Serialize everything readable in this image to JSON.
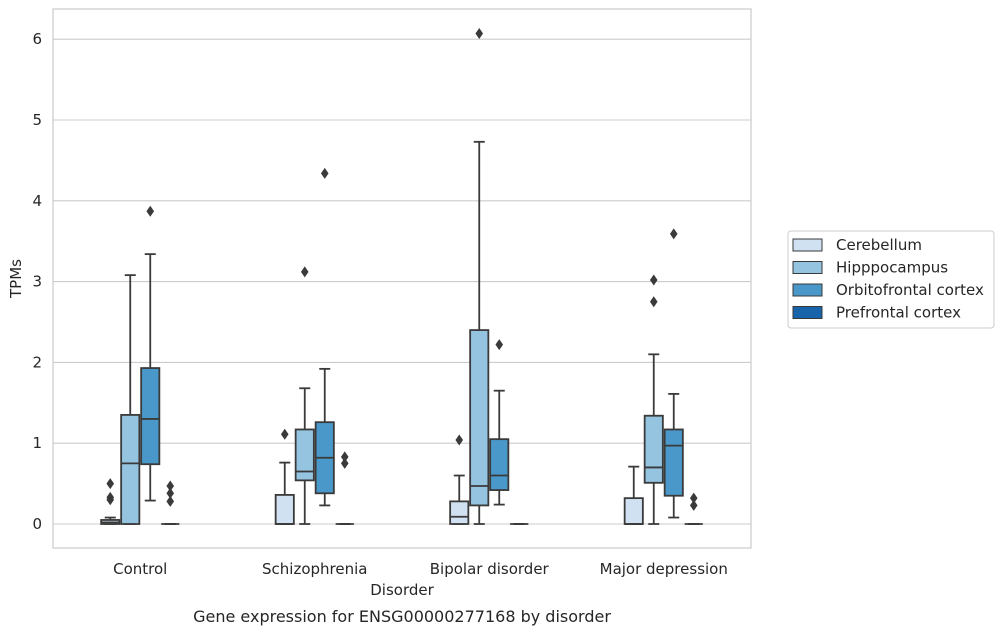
{
  "chart_data": {
    "type": "box",
    "title": "",
    "caption": "Gene expression for ENSG00000277168 by disorder",
    "xlabel": "Disorder",
    "ylabel": "TPMs",
    "ylim": [
      -0.3,
      6.4
    ],
    "yticks": [
      0,
      1,
      2,
      3,
      4,
      5,
      6
    ],
    "grid": "horizontal",
    "legend_position": "right",
    "categories": [
      "Control",
      "Schizophrenia",
      "Bipolar disorder",
      "Major depression"
    ],
    "series": [
      {
        "name": "Cerebellum",
        "color": "#d0e1f2",
        "boxes": [
          {
            "whislo": 0,
            "q1": 0,
            "med": 0.02,
            "q3": 0.05,
            "whishi": 0.08,
            "fliers": [
              0.3,
              0.33,
              0.5
            ]
          },
          {
            "whislo": 0,
            "q1": 0,
            "med": 0,
            "q3": 0.36,
            "whishi": 0.76,
            "fliers": [
              1.11
            ]
          },
          {
            "whislo": 0,
            "q1": 0,
            "med": 0.09,
            "q3": 0.28,
            "whishi": 0.6,
            "fliers": [
              1.04
            ]
          },
          {
            "whislo": 0,
            "q1": 0,
            "med": 0,
            "q3": 0.32,
            "whishi": 0.71,
            "fliers": []
          }
        ]
      },
      {
        "name": "Hipppocampus",
        "color": "#94c4df",
        "boxes": [
          {
            "whislo": 0,
            "q1": 0,
            "med": 0.75,
            "q3": 1.35,
            "whishi": 3.08,
            "fliers": []
          },
          {
            "whislo": 0,
            "q1": 0.54,
            "med": 0.65,
            "q3": 1.17,
            "whishi": 1.68,
            "fliers": [
              3.12
            ]
          },
          {
            "whislo": 0,
            "q1": 0.23,
            "med": 0.47,
            "q3": 2.4,
            "whishi": 4.73,
            "fliers": [
              6.07
            ]
          },
          {
            "whislo": 0,
            "q1": 0.51,
            "med": 0.7,
            "q3": 1.34,
            "whishi": 2.1,
            "fliers": [
              2.75,
              3.02
            ]
          }
        ]
      },
      {
        "name": "Orbitofrontal cortex",
        "color": "#4a98c9",
        "boxes": [
          {
            "whislo": 0.29,
            "q1": 0.74,
            "med": 1.3,
            "q3": 1.93,
            "whishi": 3.34,
            "fliers": [
              3.87
            ]
          },
          {
            "whislo": 0.23,
            "q1": 0.38,
            "med": 0.82,
            "q3": 1.26,
            "whishi": 1.92,
            "fliers": [
              4.34
            ]
          },
          {
            "whislo": 0.24,
            "q1": 0.42,
            "med": 0.6,
            "q3": 1.05,
            "whishi": 1.65,
            "fliers": [
              2.22
            ]
          },
          {
            "whislo": 0.08,
            "q1": 0.35,
            "med": 0.97,
            "q3": 1.17,
            "whishi": 1.61,
            "fliers": [
              3.59
            ]
          }
        ]
      },
      {
        "name": "Prefrontal cortex",
        "color": "#1764ab",
        "boxes": [
          {
            "whislo": 0,
            "q1": 0,
            "med": 0,
            "q3": 0,
            "whishi": 0,
            "fliers": [
              0.28,
              0.38,
              0.47
            ]
          },
          {
            "whislo": 0,
            "q1": 0,
            "med": 0,
            "q3": 0,
            "whishi": 0,
            "fliers": [
              0.75,
              0.83
            ]
          },
          {
            "whislo": 0,
            "q1": 0,
            "med": 0,
            "q3": 0,
            "whishi": 0,
            "fliers": []
          },
          {
            "whislo": 0,
            "q1": 0,
            "med": 0,
            "q3": 0,
            "whishi": 0,
            "fliers": [
              0.23,
              0.32
            ]
          }
        ]
      }
    ]
  }
}
